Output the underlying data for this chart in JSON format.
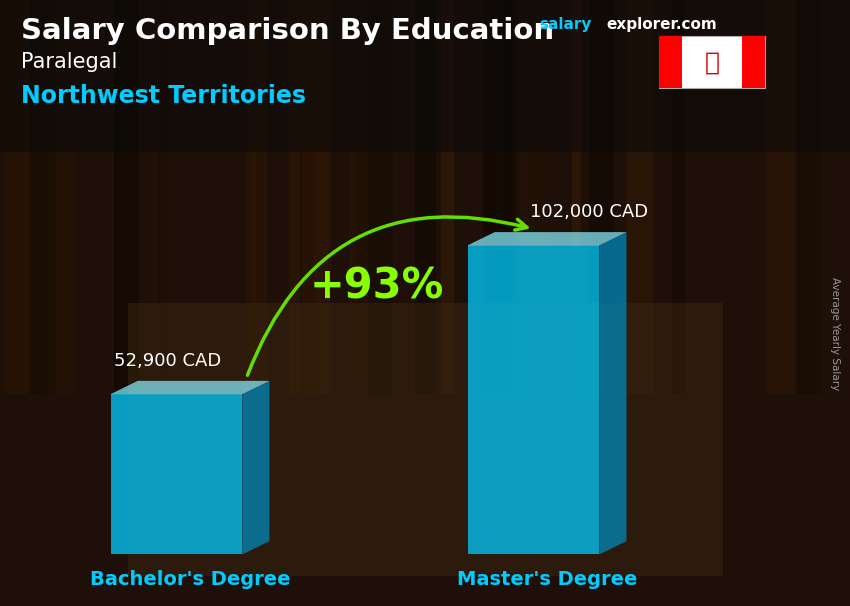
{
  "title_main": "Salary Comparison By Education",
  "subtitle1": "Paralegal",
  "subtitle2": "Northwest Territories",
  "website_part1": "salary",
  "website_part2": "explorer.com",
  "categories": [
    "Bachelor's Degree",
    "Master's Degree"
  ],
  "values": [
    52900,
    102000
  ],
  "labels": [
    "52,900 CAD",
    "102,000 CAD"
  ],
  "percent_change": "+93%",
  "bar_front_color": "#00CCFF",
  "bar_side_color": "#0088BB",
  "bar_top_color": "#88EEFF",
  "bar_alpha": 0.75,
  "bg_color": "#2a1a0e",
  "title_color": "#FFFFFF",
  "subtitle1_color": "#FFFFFF",
  "subtitle2_color": "#00CCFF",
  "label_color": "#FFFFFF",
  "category_color": "#00CCFF",
  "percent_color": "#88FF00",
  "arrow_color": "#66DD00",
  "website_color1": "#00CCFF",
  "website_color2": "#FFFFFF",
  "ylabel": "Average Yearly Salary",
  "ylim_max": 130000,
  "title_fontsize": 21,
  "subtitle1_fontsize": 15,
  "subtitle2_fontsize": 17,
  "label_fontsize": 13,
  "category_fontsize": 14,
  "percent_fontsize": 30,
  "website_fontsize": 11
}
